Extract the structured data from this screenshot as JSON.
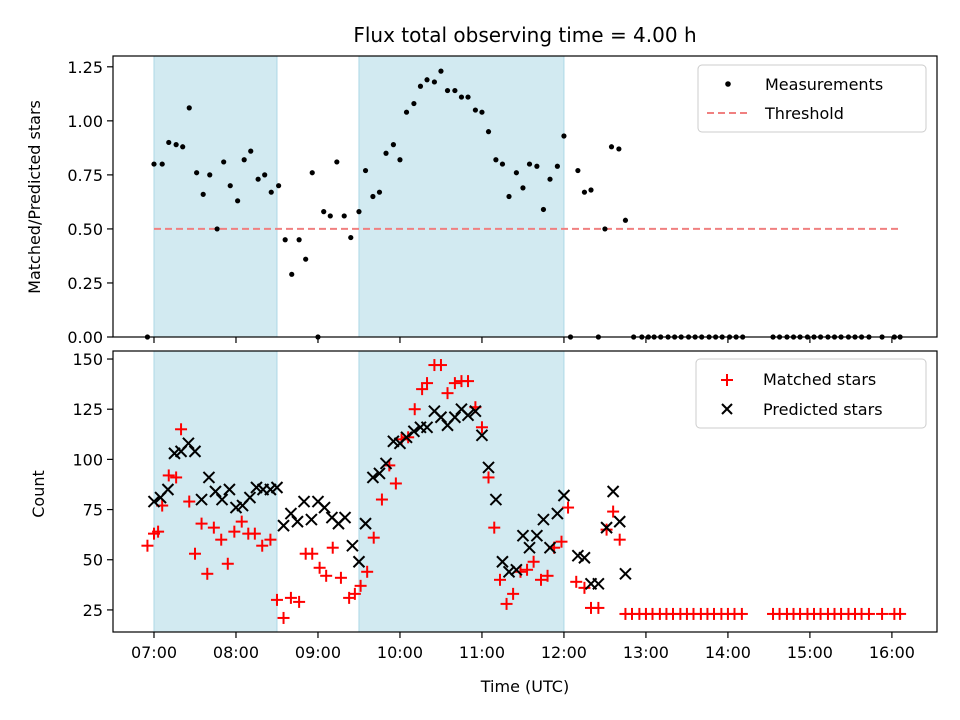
{
  "chart_data": {
    "type": "scatter",
    "title": "Flux total observing time = 4.00 h",
    "xlabel": "Time (UTC)",
    "xlim": [
      6.5,
      16.55
    ],
    "x_ticks": [
      7,
      8,
      9,
      10,
      11,
      12,
      13,
      14,
      15,
      16
    ],
    "x_tick_labels": [
      "07:00",
      "08:00",
      "09:00",
      "10:00",
      "11:00",
      "12:00",
      "13:00",
      "14:00",
      "15:00",
      "16:00"
    ],
    "shaded_intervals": [
      [
        7.0,
        8.5
      ],
      [
        9.5,
        12.0
      ]
    ],
    "shade_color": "#add8e6",
    "top": {
      "ylabel": "Matched/Predicted stars",
      "ylim": [
        0,
        1.3
      ],
      "y_ticks": [
        0,
        0.25,
        0.5,
        0.75,
        1.0,
        1.25
      ],
      "y_tick_labels": [
        "0.00",
        "0.25",
        "0.50",
        "0.75",
        "1.00",
        "1.25"
      ],
      "threshold": {
        "name": "Threshold",
        "value": 0.5,
        "x_range": [
          7.0,
          16.1
        ],
        "color": "#f08080"
      },
      "measurements": {
        "name": "Measurements",
        "color": "#000000",
        "x": [
          6.92,
          7.0,
          7.1,
          7.18,
          7.27,
          7.35,
          7.43,
          7.52,
          7.6,
          7.68,
          7.77,
          7.85,
          7.93,
          8.02,
          8.1,
          8.18,
          8.27,
          8.35,
          8.43,
          8.52,
          8.6,
          8.68,
          8.77,
          8.85,
          8.93,
          9.0,
          9.07,
          9.15,
          9.23,
          9.32,
          9.4,
          9.5,
          9.58,
          9.67,
          9.75,
          9.83,
          9.92,
          10.0,
          10.08,
          10.17,
          10.25,
          10.33,
          10.42,
          10.5,
          10.58,
          10.67,
          10.75,
          10.83,
          10.92,
          11.0,
          11.08,
          11.17,
          11.25,
          11.33,
          11.42,
          11.5,
          11.58,
          11.67,
          11.75,
          11.83,
          11.92,
          12.0,
          12.08,
          12.17,
          12.25,
          12.33,
          12.42,
          12.5,
          12.58,
          12.67,
          12.75,
          12.85,
          12.95,
          13.03,
          13.1,
          13.18,
          13.27,
          13.35,
          13.43,
          13.52,
          13.6,
          13.68,
          13.77,
          13.85,
          13.93,
          14.02,
          14.1,
          14.18,
          14.55,
          14.63,
          14.72,
          14.8,
          14.88,
          14.97,
          15.05,
          15.13,
          15.22,
          15.3,
          15.38,
          15.47,
          15.55,
          15.63,
          15.72,
          15.88,
          16.03,
          16.1
        ],
        "y": [
          0.0,
          0.8,
          0.8,
          0.9,
          0.89,
          0.88,
          1.06,
          0.76,
          0.66,
          0.75,
          0.5,
          0.81,
          0.7,
          0.63,
          0.82,
          0.86,
          0.73,
          0.75,
          0.67,
          0.7,
          0.45,
          0.29,
          0.45,
          0.36,
          0.76,
          0.0,
          0.58,
          0.56,
          0.81,
          0.56,
          0.46,
          0.58,
          0.77,
          0.65,
          0.67,
          0.85,
          0.89,
          0.82,
          1.04,
          1.08,
          1.16,
          1.19,
          1.18,
          1.23,
          1.14,
          1.14,
          1.11,
          1.11,
          1.05,
          1.04,
          0.95,
          0.82,
          0.8,
          0.65,
          0.76,
          0.69,
          0.8,
          0.79,
          0.59,
          0.73,
          0.79,
          0.93,
          0.0,
          0.77,
          0.67,
          0.68,
          0.0,
          0.5,
          0.88,
          0.87,
          0.54,
          0.0,
          0.0,
          0.0,
          0.0,
          0.0,
          0.0,
          0.0,
          0.0,
          0.0,
          0.0,
          0.0,
          0.0,
          0.0,
          0.0,
          0.0,
          0.0,
          0.0,
          0.0,
          0.0,
          0.0,
          0.0,
          0.0,
          0.0,
          0.0,
          0.0,
          0.0,
          0.0,
          0.0,
          0.0,
          0.0,
          0.0,
          0.0,
          0.0,
          0.0,
          0.0
        ]
      }
    },
    "bottom": {
      "ylabel": "Count",
      "ylim": [
        14,
        154
      ],
      "y_ticks": [
        25,
        50,
        75,
        100,
        125,
        150
      ],
      "y_tick_labels": [
        "25",
        "50",
        "75",
        "100",
        "125",
        "150"
      ],
      "matched": {
        "name": "Matched stars",
        "color": "#ff0000",
        "x": [
          6.92,
          7.0,
          7.05,
          7.1,
          7.18,
          7.27,
          7.33,
          7.43,
          7.5,
          7.58,
          7.65,
          7.73,
          7.82,
          7.9,
          7.98,
          8.07,
          8.15,
          8.23,
          8.32,
          8.42,
          8.5,
          8.58,
          8.67,
          8.77,
          8.85,
          8.93,
          9.02,
          9.1,
          9.18,
          9.28,
          9.38,
          9.45,
          9.52,
          9.6,
          9.68,
          9.78,
          9.87,
          9.95,
          10.02,
          10.1,
          10.18,
          10.27,
          10.33,
          10.42,
          10.5,
          10.58,
          10.67,
          10.75,
          10.83,
          10.92,
          11.0,
          11.08,
          11.15,
          11.22,
          11.3,
          11.38,
          11.47,
          11.55,
          11.63,
          11.72,
          11.8,
          11.88,
          11.97,
          12.05,
          12.15,
          12.25,
          12.33,
          12.42,
          12.52,
          12.6,
          12.68,
          12.75,
          12.83,
          12.92,
          13.0,
          13.08,
          13.17,
          13.25,
          13.33,
          13.42,
          13.5,
          13.58,
          13.67,
          13.75,
          13.83,
          13.92,
          14.0,
          14.08,
          14.17,
          14.55,
          14.63,
          14.72,
          14.8,
          14.88,
          14.97,
          15.05,
          15.13,
          15.22,
          15.3,
          15.38,
          15.47,
          15.55,
          15.63,
          15.72,
          15.88,
          16.03,
          16.1
        ],
        "y": [
          57,
          63,
          64,
          77,
          92,
          91,
          115,
          79,
          53,
          68,
          43,
          66,
          60,
          48,
          64,
          69,
          63,
          63,
          57,
          60,
          30,
          21,
          31,
          29,
          53,
          53,
          46,
          42,
          56,
          41,
          31,
          33,
          37,
          44,
          61,
          80,
          97,
          88,
          110,
          111,
          125,
          135,
          138,
          147,
          147,
          133,
          138,
          139,
          139,
          126,
          116,
          91,
          66,
          40,
          28,
          33,
          44,
          45,
          49,
          40,
          42,
          56,
          59,
          76,
          39,
          36,
          26,
          26,
          65,
          74,
          60,
          23,
          23,
          23,
          23,
          23,
          23,
          23,
          23,
          23,
          23,
          23,
          23,
          23,
          23,
          23,
          23,
          23,
          23,
          23,
          23,
          23,
          23,
          23,
          23,
          23,
          23,
          23,
          23,
          23,
          23,
          23,
          23,
          23,
          23,
          23,
          23
        ]
      },
      "predicted": {
        "name": "Predicted stars",
        "color": "#000000",
        "x": [
          7.0,
          7.08,
          7.17,
          7.25,
          7.33,
          7.42,
          7.5,
          7.58,
          7.67,
          7.75,
          7.83,
          7.92,
          8.0,
          8.08,
          8.17,
          8.25,
          8.33,
          8.42,
          8.5,
          8.58,
          8.67,
          8.75,
          8.83,
          8.92,
          9.0,
          9.08,
          9.17,
          9.25,
          9.33,
          9.42,
          9.5,
          9.58,
          9.67,
          9.75,
          9.83,
          9.92,
          10.0,
          10.08,
          10.17,
          10.25,
          10.33,
          10.42,
          10.5,
          10.58,
          10.67,
          10.75,
          10.83,
          10.92,
          11.0,
          11.08,
          11.17,
          11.25,
          11.33,
          11.42,
          11.5,
          11.58,
          11.67,
          11.75,
          11.83,
          11.92,
          12.0,
          12.17,
          12.25,
          12.33,
          12.42,
          12.52,
          12.6,
          12.68,
          12.75
        ],
        "y": [
          79,
          81,
          85,
          103,
          104,
          108,
          104,
          80,
          91,
          84,
          80,
          85,
          76,
          77,
          81,
          86,
          85,
          85,
          86,
          67,
          73,
          69,
          79,
          70,
          79,
          76,
          71,
          68,
          71,
          57,
          49,
          68,
          91,
          93,
          98,
          109,
          108,
          111,
          114,
          116,
          116,
          124,
          121,
          117,
          121,
          125,
          122,
          124,
          112,
          96,
          80,
          49,
          44,
          45,
          62,
          56,
          62,
          70,
          56,
          73,
          82,
          52,
          51,
          38,
          38,
          66,
          84,
          69,
          43
        ]
      }
    }
  }
}
